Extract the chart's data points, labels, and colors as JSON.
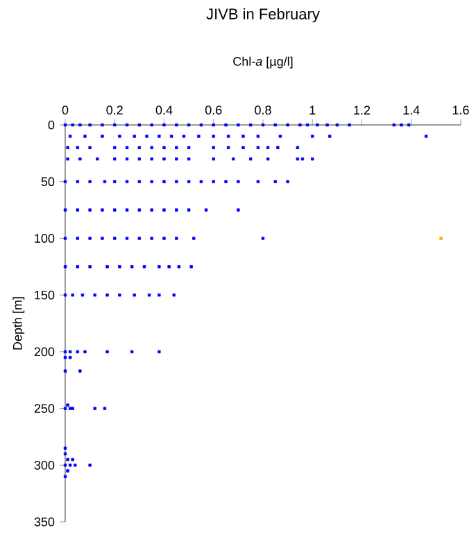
{
  "chart_data": {
    "type": "scatter",
    "title": "JIVB in February",
    "xlabel": "Chl-*a* [µg/l]",
    "ylabel": "Depth [m]",
    "xlim": [
      0,
      1.6
    ],
    "xticks": [
      0,
      0.2,
      0.4,
      0.6,
      0.8,
      1,
      1.2,
      1.4,
      1.6
    ],
    "ylim": [
      350,
      0
    ],
    "yticks": [
      0,
      50,
      100,
      150,
      200,
      250,
      300,
      350
    ],
    "marker": "square",
    "grid": false,
    "series": [
      {
        "color": "#0000ff",
        "x": [
          0,
          0.03,
          0.06,
          0.1,
          0.15,
          0.2,
          0.25,
          0.3,
          0.35,
          0.4,
          0.45,
          0.5,
          0.55,
          0.6,
          0.65,
          0.7,
          0.75,
          0.8,
          0.85,
          0.9,
          0.95,
          0.98,
          1.02,
          1.06,
          1.1,
          1.15,
          1.33,
          1.36,
          1.39,
          0.02,
          0.08,
          0.15,
          0.22,
          0.28,
          0.33,
          0.38,
          0.43,
          0.48,
          0.54,
          0.6,
          0.66,
          0.72,
          0.78,
          0.87,
          1.0,
          1.07,
          1.46,
          0.01,
          0.05,
          0.1,
          0.2,
          0.25,
          0.3,
          0.35,
          0.4,
          0.45,
          0.5,
          0.6,
          0.66,
          0.72,
          0.78,
          0.82,
          0.86,
          0.94,
          0.01,
          0.06,
          0.13,
          0.2,
          0.25,
          0.3,
          0.35,
          0.4,
          0.45,
          0.5,
          0.6,
          0.68,
          0.75,
          0.82,
          0.94,
          0.96,
          1.0,
          0,
          0.05,
          0.1,
          0.16,
          0.2,
          0.25,
          0.3,
          0.35,
          0.4,
          0.45,
          0.5,
          0.55,
          0.6,
          0.65,
          0.7,
          0.78,
          0.85,
          0.9,
          0,
          0.05,
          0.1,
          0.15,
          0.2,
          0.25,
          0.3,
          0.35,
          0.4,
          0.45,
          0.5,
          0.57,
          0.7,
          0,
          0.05,
          0.1,
          0.15,
          0.2,
          0.25,
          0.3,
          0.35,
          0.4,
          0.45,
          0.52,
          0.8,
          0,
          0.05,
          0.1,
          0.17,
          0.22,
          0.27,
          0.32,
          0.38,
          0.42,
          0.46,
          0.51,
          0,
          0.03,
          0.07,
          0.12,
          0.17,
          0.22,
          0.28,
          0.34,
          0.38,
          0.44,
          0,
          0.02,
          0.05,
          0.08,
          0.17,
          0.27,
          0.38,
          0,
          0.02,
          0,
          0.06,
          0,
          0.02,
          0.03,
          0.12,
          0.16,
          0.01,
          0,
          0,
          0.01,
          0.03,
          0,
          0.02,
          0.04,
          0.1,
          0.01,
          0
        ],
        "values": [
          0,
          0,
          0,
          0,
          0,
          0,
          0,
          0,
          0,
          0,
          0,
          0,
          0,
          0,
          0,
          0,
          0,
          0,
          0,
          0,
          0,
          0,
          0,
          0,
          0,
          0,
          0,
          0,
          0,
          10,
          10,
          10,
          10,
          10,
          10,
          10,
          10,
          10,
          10,
          10,
          10,
          10,
          10,
          10,
          10,
          10,
          10,
          20,
          20,
          20,
          20,
          20,
          20,
          20,
          20,
          20,
          20,
          20,
          20,
          20,
          20,
          20,
          20,
          20,
          30,
          30,
          30,
          30,
          30,
          30,
          30,
          30,
          30,
          30,
          30,
          30,
          30,
          30,
          30,
          30,
          30,
          50,
          50,
          50,
          50,
          50,
          50,
          50,
          50,
          50,
          50,
          50,
          50,
          50,
          50,
          50,
          50,
          50,
          50,
          75,
          75,
          75,
          75,
          75,
          75,
          75,
          75,
          75,
          75,
          75,
          75,
          75,
          100,
          100,
          100,
          100,
          100,
          100,
          100,
          100,
          100,
          100,
          100,
          100,
          125,
          125,
          125,
          125,
          125,
          125,
          125,
          125,
          125,
          125,
          125,
          150,
          150,
          150,
          150,
          150,
          150,
          150,
          150,
          150,
          150,
          200,
          200,
          200,
          200,
          200,
          200,
          200,
          205,
          205,
          217,
          217,
          250,
          250,
          250,
          250,
          250,
          247,
          285,
          290,
          295,
          295,
          300,
          300,
          300,
          300,
          305,
          310
        ]
      },
      {
        "color": "#ffa500",
        "x": [
          1.52
        ],
        "values": [
          100
        ]
      }
    ]
  }
}
